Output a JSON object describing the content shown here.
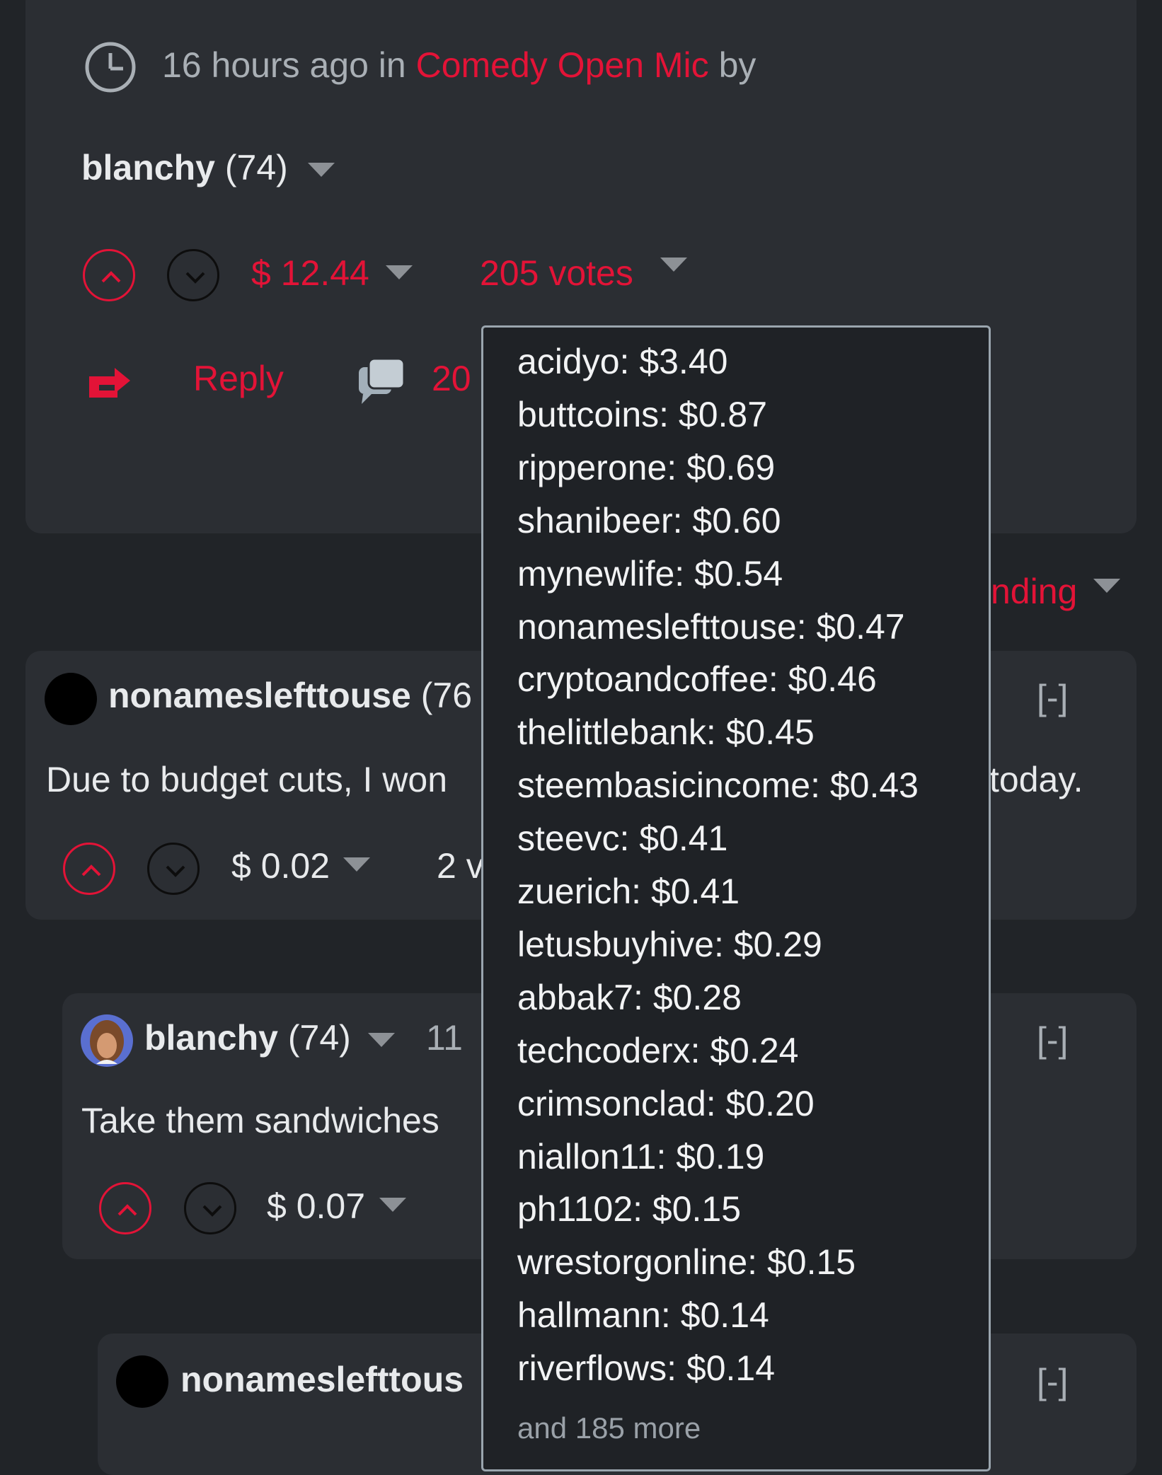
{
  "post": {
    "time": "16 hours ago in",
    "community": "Comedy Open Mic",
    "by": "by",
    "author": "blanchy",
    "reputation": "(74)",
    "payout": "$ 12.44",
    "votes": "205 votes",
    "reply_label": "Reply",
    "comments_count": "20"
  },
  "sort_label": "nding",
  "comments": [
    {
      "author": "nonameslefttouse",
      "reputation_partial": "(76",
      "body_left": "Due to budget cuts, I won",
      "body_right": "today.",
      "payout": "$ 0.02",
      "votes_partial": "2 v",
      "collapse": "[-]"
    },
    {
      "author": "blanchy",
      "reputation": "(74)",
      "time_partial": "11",
      "body_left": "Take them sandwiches",
      "payout": "$ 0.07",
      "collapse": "[-]"
    },
    {
      "author_partial": "nonameslefttous",
      "collapse": "[-]"
    }
  ],
  "voters": [
    "acidyo: $3.40",
    "buttcoins: $0.87",
    "ripperone: $0.69",
    "shanibeer: $0.60",
    "mynewlife: $0.54",
    "nonameslefttouse: $0.47",
    "cryptoandcoffee: $0.46",
    "thelittlebank: $0.45",
    "steembasicincome: $0.43",
    "steevc: $0.41",
    "zuerich: $0.41",
    "letusbuyhive: $0.29",
    "abbak7: $0.28",
    "techcoderx: $0.24",
    "crimsonclad: $0.20",
    "niallon11: $0.19",
    "ph1102: $0.15",
    "wrestorgonline: $0.15",
    "hallmann: $0.14",
    "riverflows: $0.14"
  ],
  "voters_more": "and 185 more",
  "colors": {
    "accent": "#e31337",
    "background": "#212428",
    "card": "#2b2e33"
  }
}
